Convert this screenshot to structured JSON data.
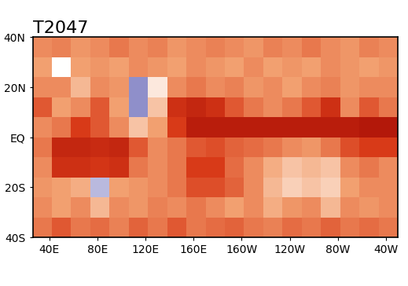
{
  "chart_data": {
    "type": "heatmap",
    "title": "T2047",
    "x_edges": [
      26,
      42,
      58,
      74,
      90,
      106,
      122,
      138,
      154,
      170,
      186,
      202,
      218,
      234,
      250,
      266,
      282,
      298,
      314,
      330
    ],
    "y_edges": [
      -40,
      -32,
      -24,
      -16,
      -8,
      0,
      8,
      16,
      24,
      32,
      40
    ],
    "cells": [
      [
        1.2,
        1.5,
        1.2,
        1.3,
        1.1,
        1.4,
        1.2,
        1.5,
        1.2,
        1.3,
        1.4,
        1.2,
        1.1,
        1.3,
        1.2,
        1.4,
        1.2,
        1.3,
        1.2
      ],
      [
        1.0,
        0.8,
        1.0,
        0.6,
        1.0,
        0.9,
        1.1,
        1.0,
        1.2,
        1.0,
        0.8,
        1.0,
        0.7,
        0.9,
        1.0,
        0.6,
        1.0,
        0.9,
        1.0
      ],
      [
        0.9,
        0.8,
        0.7,
        -0.3,
        0.8,
        0.9,
        1.0,
        1.2,
        1.6,
        1.6,
        1.4,
        1.0,
        0.6,
        0.4,
        0.5,
        0.4,
        0.8,
        1.0,
        1.0
      ],
      [
        1.0,
        2.0,
        2.0,
        1.9,
        2.0,
        1.2,
        1.0,
        1.2,
        1.8,
        1.8,
        1.3,
        1.0,
        0.7,
        0.5,
        0.6,
        0.5,
        1.0,
        1.2,
        1.0
      ],
      [
        1.2,
        2.2,
        2.2,
        2.1,
        2.2,
        1.5,
        1.0,
        1.2,
        1.5,
        1.6,
        1.4,
        1.3,
        1.2,
        1.0,
        0.9,
        1.2,
        1.6,
        1.8,
        1.8
      ],
      [
        1.0,
        1.2,
        1.8,
        1.5,
        1.0,
        0.5,
        0.8,
        1.8,
        2.4,
        2.4,
        2.4,
        2.4,
        2.4,
        2.4,
        2.4,
        2.4,
        2.4,
        2.5,
        2.5
      ],
      [
        1.5,
        0.8,
        1.0,
        1.5,
        0.8,
        -0.5,
        0.5,
        2.0,
        2.2,
        2.0,
        1.5,
        1.2,
        1.0,
        1.2,
        1.5,
        2.0,
        1.0,
        1.5,
        1.2
      ],
      [
        1.0,
        1.0,
        0.6,
        1.0,
        0.9,
        -0.5,
        0.2,
        1.0,
        1.2,
        1.0,
        1.1,
        0.9,
        1.0,
        0.8,
        1.0,
        1.1,
        0.9,
        1.0,
        1.0
      ],
      [
        0.8,
        0.0,
        0.8,
        0.9,
        0.8,
        1.0,
        0.9,
        0.8,
        1.0,
        0.9,
        0.8,
        1.0,
        0.8,
        0.9,
        0.8,
        1.0,
        0.9,
        0.8,
        0.9
      ],
      [
        1.0,
        1.1,
        0.9,
        1.0,
        1.2,
        1.0,
        1.1,
        0.9,
        1.0,
        1.1,
        1.0,
        0.9,
        1.1,
        1.0,
        1.2,
        1.0,
        0.9,
        1.1,
        1.0
      ]
    ],
    "clim": [
      -1,
      3
    ],
    "xlim": [
      26,
      330
    ],
    "ylim": [
      -40,
      40
    ],
    "xticks": [
      {
        "value": 40,
        "label": "40E"
      },
      {
        "value": 80,
        "label": "80E"
      },
      {
        "value": 120,
        "label": "120E"
      },
      {
        "value": 160,
        "label": "160E"
      },
      {
        "value": 200,
        "label": "160W"
      },
      {
        "value": 240,
        "label": "120W"
      },
      {
        "value": 280,
        "label": "80W"
      },
      {
        "value": 320,
        "label": "40W"
      }
    ],
    "yticks": [
      {
        "value": -40,
        "label": "40S"
      },
      {
        "value": -20,
        "label": "20S"
      },
      {
        "value": 0,
        "label": "EQ"
      },
      {
        "value": 20,
        "label": "20N"
      },
      {
        "value": 40,
        "label": "40N"
      }
    ],
    "grid": false
  }
}
